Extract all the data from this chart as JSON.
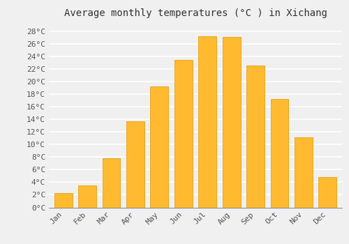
{
  "title": "Average monthly temperatures (°C ) in Xichang",
  "months": [
    "Jan",
    "Feb",
    "Mar",
    "Apr",
    "May",
    "Jun",
    "Jul",
    "Aug",
    "Sep",
    "Oct",
    "Nov",
    "Dec"
  ],
  "temperatures": [
    2.3,
    3.5,
    7.8,
    13.7,
    19.2,
    23.5,
    27.2,
    27.1,
    22.6,
    17.3,
    11.1,
    4.8
  ],
  "bar_color": "#FFBA30",
  "bar_edge_color": "#E8A010",
  "background_color": "#F0F0F0",
  "grid_color": "#FFFFFF",
  "ytick_labels": [
    "0°C",
    "2°C",
    "4°C",
    "6°C",
    "8°C",
    "10°C",
    "12°C",
    "14°C",
    "16°C",
    "18°C",
    "20°C",
    "22°C",
    "24°C",
    "26°C",
    "28°C"
  ],
  "ytick_values": [
    0,
    2,
    4,
    6,
    8,
    10,
    12,
    14,
    16,
    18,
    20,
    22,
    24,
    26,
    28
  ],
  "ylim": [
    0,
    29.5
  ],
  "title_fontsize": 10,
  "tick_fontsize": 8,
  "font_family": "monospace",
  "bar_width": 0.75
}
